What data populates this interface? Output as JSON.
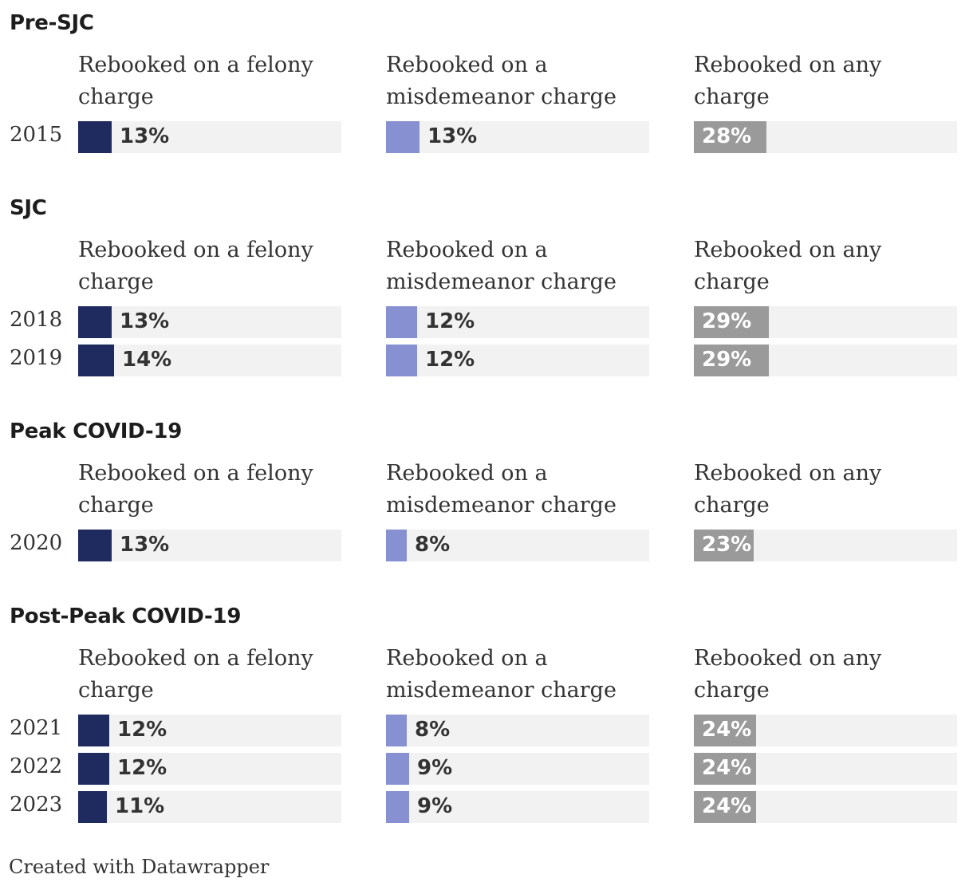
{
  "chart_data": {
    "type": "bar",
    "columns": [
      {
        "key": "felony",
        "label": "Rebooked on a felony charge",
        "color": "#1f2a5e",
        "label_position": "outside"
      },
      {
        "key": "misdemeanor",
        "label": "Rebooked on a misdemeanor charge",
        "color": "#8790d0",
        "label_position": "outside"
      },
      {
        "key": "any",
        "label": "Rebooked on any charge",
        "color": "#9a9a9a",
        "label_position": "inside"
      }
    ],
    "value_range": [
      0,
      100
    ],
    "groups": [
      {
        "title": "Pre-SJC",
        "rows": [
          {
            "year": "2015",
            "felony": 13,
            "misdemeanor": 13,
            "any": 28
          }
        ]
      },
      {
        "title": "SJC",
        "rows": [
          {
            "year": "2018",
            "felony": 13,
            "misdemeanor": 12,
            "any": 29
          },
          {
            "year": "2019",
            "felony": 14,
            "misdemeanor": 12,
            "any": 29
          }
        ]
      },
      {
        "title": "Peak COVID-19",
        "rows": [
          {
            "year": "2020",
            "felony": 13,
            "misdemeanor": 8,
            "any": 23
          }
        ]
      },
      {
        "title": "Post-Peak COVID-19",
        "rows": [
          {
            "year": "2021",
            "felony": 12,
            "misdemeanor": 8,
            "any": 24
          },
          {
            "year": "2022",
            "felony": 12,
            "misdemeanor": 9,
            "any": 24
          },
          {
            "year": "2023",
            "felony": 11,
            "misdemeanor": 9,
            "any": 24
          }
        ]
      }
    ],
    "value_suffix": "%"
  },
  "footer": "Created with Datawrapper"
}
